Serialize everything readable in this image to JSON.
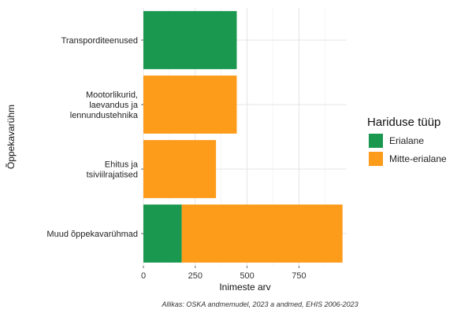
{
  "chart_data": {
    "type": "bar",
    "orientation": "horizontal",
    "stacked": true,
    "categories": [
      [
        "Transporditeenused"
      ],
      [
        "Mootorlikurid,",
        "laevandus ja",
        "lennundustehnika"
      ],
      [
        "Ehitus ja",
        "tsiviilrajatised"
      ],
      [
        "Muud õppekavarühmad"
      ]
    ],
    "series": [
      {
        "name": "Erialane",
        "color": "#1a9850",
        "values": [
          450,
          0,
          0,
          185
        ]
      },
      {
        "name": "Mitte-erialane",
        "color": "#fd9b1a",
        "values": [
          0,
          450,
          350,
          775
        ]
      }
    ],
    "xlabel": "Inimeste arv",
    "ylabel": "Õppekavarühm",
    "xlim": [
      0,
      980
    ],
    "xticks": [
      0,
      250,
      500,
      750
    ],
    "grid": true,
    "legend": {
      "title": "Hariduse tüüp",
      "position": "right"
    },
    "caption": "Allikas: OSKA andmemudel, 2023 a andmed, EHIS 2006-2023"
  }
}
